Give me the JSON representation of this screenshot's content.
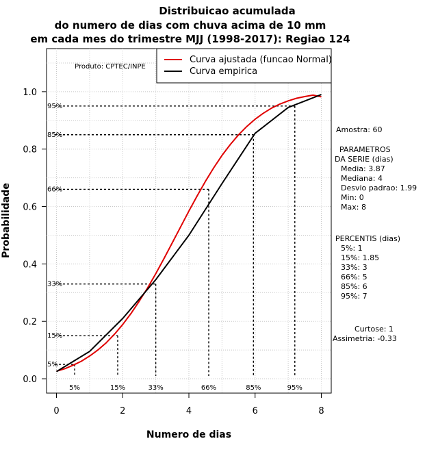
{
  "chart_data": {
    "type": "line",
    "title_lines": [
      "Distribuicao acumulada",
      "do numero de dias com chuva acima de 10 mm",
      "em cada mes do trimestre MJJ (1998-2017): Regiao 124"
    ],
    "xlabel": "Numero de dias",
    "ylabel": "Probabilidade",
    "xlim": [
      -0.3,
      8.3
    ],
    "ylim": [
      -0.05,
      1.15
    ],
    "xticks": [
      0,
      2,
      4,
      6,
      8
    ],
    "xtick_labels": [
      "0",
      "2",
      "4",
      "6",
      "8"
    ],
    "yticks": [
      0.0,
      0.2,
      0.4,
      0.6,
      0.8,
      1.0
    ],
    "ytick_labels": [
      "0.0",
      "0.2",
      "0.4",
      "0.6",
      "0.8",
      "1.0"
    ],
    "grid": true,
    "credit": "Produto: CPTEC/INPE",
    "legend": {
      "position": "top-right",
      "entries": [
        {
          "label": "Curva ajustada (funcao Normal)",
          "color": "#e00000"
        },
        {
          "label": "Curva empirica",
          "color": "#000000"
        }
      ]
    },
    "series": [
      {
        "name": "Curva ajustada (funcao Normal)",
        "color": "#e00000",
        "x": [
          0,
          0.25,
          0.5,
          0.75,
          1,
          1.25,
          1.5,
          1.75,
          2,
          2.25,
          2.5,
          2.75,
          3,
          3.25,
          3.5,
          3.75,
          4,
          4.25,
          4.5,
          4.75,
          5,
          5.25,
          5.5,
          5.75,
          6,
          6.25,
          6.5,
          6.75,
          7,
          7.25,
          7.5,
          7.75,
          8
        ],
        "y": [
          0.026,
          0.035,
          0.047,
          0.061,
          0.079,
          0.1,
          0.125,
          0.155,
          0.189,
          0.227,
          0.27,
          0.316,
          0.366,
          0.419,
          0.474,
          0.529,
          0.584,
          0.637,
          0.688,
          0.735,
          0.778,
          0.816,
          0.85,
          0.879,
          0.904,
          0.925,
          0.943,
          0.957,
          0.968,
          0.977,
          0.983,
          0.988,
          0.982
        ]
      },
      {
        "name": "Curva empirica",
        "color": "#000000",
        "x": [
          0,
          1,
          2,
          3,
          4,
          5,
          6,
          7,
          8
        ],
        "y": [
          0.025,
          0.095,
          0.21,
          0.345,
          0.5,
          0.68,
          0.855,
          0.945,
          0.99
        ]
      }
    ],
    "percentile_markers": [
      {
        "label": "5%",
        "p": 0.05,
        "x": 0.55
      },
      {
        "label": "15%",
        "p": 0.15,
        "x": 1.85
      },
      {
        "label": "33%",
        "p": 0.33,
        "x": 3.0
      },
      {
        "label": "66%",
        "p": 0.66,
        "x": 4.6
      },
      {
        "label": "85%",
        "p": 0.85,
        "x": 5.95
      },
      {
        "label": "95%",
        "p": 0.95,
        "x": 7.2
      }
    ],
    "stats": {
      "amostra": "Amostra: 60",
      "parametros_title_1": "PARAMETROS",
      "parametros_title_2": "DA SERIE (dias)",
      "media": "Media: 3.87",
      "mediana": "Mediana: 4",
      "desvio": "Desvio padrao: 1.99",
      "min": "Min: 0",
      "max": "Max: 8",
      "percentis_title": "PERCENTIS (dias)",
      "p5": "5%: 1",
      "p15": "15%: 1.85",
      "p33": "33%: 3",
      "p66": "66%: 5",
      "p85": "85%: 6",
      "p95": "95%: 7",
      "curtose": "Curtose: 1",
      "assimetria": "Assimetria: -0.33"
    }
  }
}
